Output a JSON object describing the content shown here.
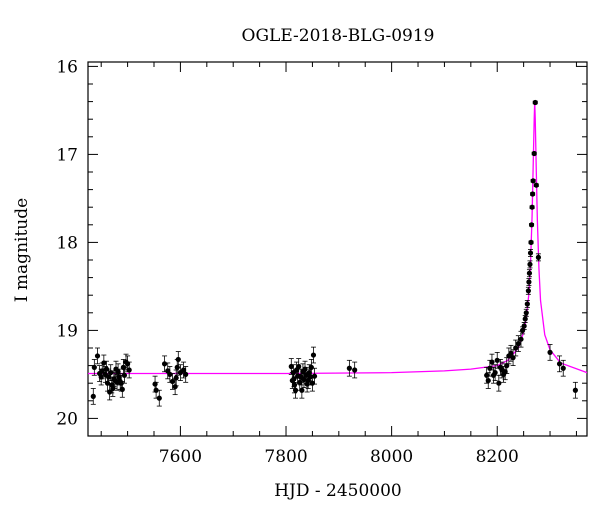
{
  "chart_data": {
    "type": "scatter",
    "title": "OGLE-2018-BLG-0919",
    "xlabel": "HJD - 2450000",
    "ylabel": "I magnitude",
    "xlim": [
      7425,
      8370
    ],
    "ylim": [
      20.2,
      15.95
    ],
    "y_inverted": true,
    "x_ticks": [
      7600,
      7800,
      8000,
      8200
    ],
    "y_ticks": [
      16,
      17,
      18,
      19,
      20
    ],
    "grid": false,
    "legend": "none",
    "colors": {
      "data": "#000000",
      "model": "#ff00ff"
    },
    "model_curve": {
      "name": "",
      "color": "#ff00ff",
      "baseline_mag": 19.49,
      "peak_mag": 16.4,
      "peak_time": 8271,
      "x": [
        7425,
        7600,
        7800,
        8000,
        8100,
        8150,
        8200,
        8220,
        8240,
        8250,
        8255,
        8260,
        8263,
        8266,
        8268,
        8270,
        8271,
        8272,
        8274,
        8276,
        8279,
        8282,
        8290,
        8300,
        8320,
        8370
      ],
      "y": [
        19.49,
        19.49,
        19.49,
        19.48,
        19.46,
        19.44,
        19.4,
        19.34,
        19.2,
        19.02,
        18.86,
        18.58,
        18.25,
        17.7,
        17.15,
        16.6,
        16.4,
        16.6,
        17.2,
        17.75,
        18.3,
        18.66,
        19.05,
        19.22,
        19.37,
        19.48
      ]
    },
    "series": [
      {
        "name": "",
        "x": [
          7435,
          7437,
          7443,
          7447,
          7450,
          7452,
          7455,
          7458,
          7460,
          7462,
          7464,
          7466,
          7468,
          7470,
          7472,
          7474,
          7476,
          7478,
          7480,
          7482,
          7484,
          7486,
          7488,
          7490,
          7492,
          7494,
          7497,
          7500,
          7503,
          7552,
          7554,
          7560,
          7570,
          7576,
          7580,
          7585,
          7590,
          7592,
          7594,
          7596,
          7600,
          7606,
          7610,
          7810,
          7812,
          7814,
          7815,
          7816,
          7818,
          7820,
          7822,
          7824,
          7826,
          7828,
          7830,
          7832,
          7834,
          7836,
          7838,
          7840,
          7842,
          7844,
          7846,
          7848,
          7850,
          7852,
          7854,
          7920,
          7930,
          8180,
          8183,
          8186,
          8190,
          8193,
          8196,
          8200,
          8203,
          8206,
          8209,
          8212,
          8215,
          8218,
          8222,
          8226,
          8230,
          8235,
          8240,
          8245,
          8248,
          8251,
          8253,
          8255,
          8257,
          8259,
          8260,
          8261,
          8262,
          8263,
          8264,
          8265,
          8266,
          8267,
          8268,
          8270,
          8272,
          8274,
          8278,
          8300,
          8318,
          8325,
          8348
        ],
        "y": [
          19.75,
          19.42,
          19.29,
          19.49,
          19.53,
          19.46,
          19.37,
          19.5,
          19.44,
          19.6,
          19.53,
          19.7,
          19.48,
          19.62,
          19.66,
          19.55,
          19.57,
          19.44,
          19.59,
          19.47,
          19.53,
          19.58,
          19.6,
          19.67,
          19.42,
          19.51,
          19.36,
          19.38,
          19.45,
          19.61,
          19.68,
          19.77,
          19.38,
          19.46,
          19.5,
          19.58,
          19.64,
          19.54,
          19.42,
          19.33,
          19.48,
          19.45,
          19.5,
          19.41,
          19.57,
          19.48,
          19.55,
          19.62,
          19.68,
          19.45,
          19.52,
          19.41,
          19.59,
          19.53,
          19.68,
          19.47,
          19.56,
          19.44,
          19.51,
          19.61,
          19.57,
          19.48,
          19.53,
          19.42,
          19.6,
          19.28,
          19.52,
          19.43,
          19.45,
          19.51,
          19.57,
          19.43,
          19.36,
          19.51,
          19.48,
          19.34,
          19.6,
          19.42,
          19.45,
          19.5,
          19.47,
          19.4,
          19.29,
          19.26,
          19.31,
          19.2,
          19.15,
          19.1,
          19.0,
          18.95,
          18.87,
          18.8,
          18.7,
          18.55,
          18.45,
          18.35,
          18.25,
          18.12,
          18.0,
          17.8,
          17.6,
          17.45,
          17.3,
          16.99,
          16.41,
          17.35,
          18.17,
          19.25,
          19.38,
          19.43,
          19.68
        ]
      }
    ]
  }
}
